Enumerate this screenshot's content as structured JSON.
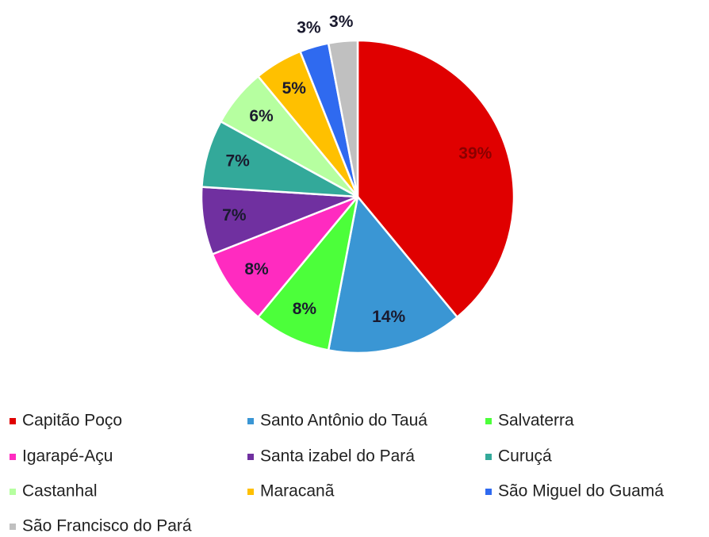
{
  "chart_data": {
    "type": "pie",
    "categories": [
      "Capitão  Poço",
      "Santo Antônio do Tauá",
      "Salvaterra",
      "Igarapé-Açu",
      "Santa izabel do Pará",
      "Curuçá",
      "Castanhal",
      "Maracanã",
      "São Miguel do Guamá",
      "São Francisco do Pará"
    ],
    "values": [
      39,
      14,
      8,
      8,
      7,
      7,
      6,
      5,
      3,
      3
    ],
    "value_labels": [
      "39%",
      "14%",
      "8%",
      "8%",
      "7%",
      "7%",
      "6%",
      "5%",
      "3%",
      "3%"
    ],
    "colors": [
      "#e00000",
      "#3a96d4",
      "#4cff3a",
      "#ff2bc0",
      "#7030a0",
      "#33a99a",
      "#b6ffa0",
      "#ffc000",
      "#2f6af0",
      "#c0c0c0"
    ],
    "legend": "bottom"
  }
}
